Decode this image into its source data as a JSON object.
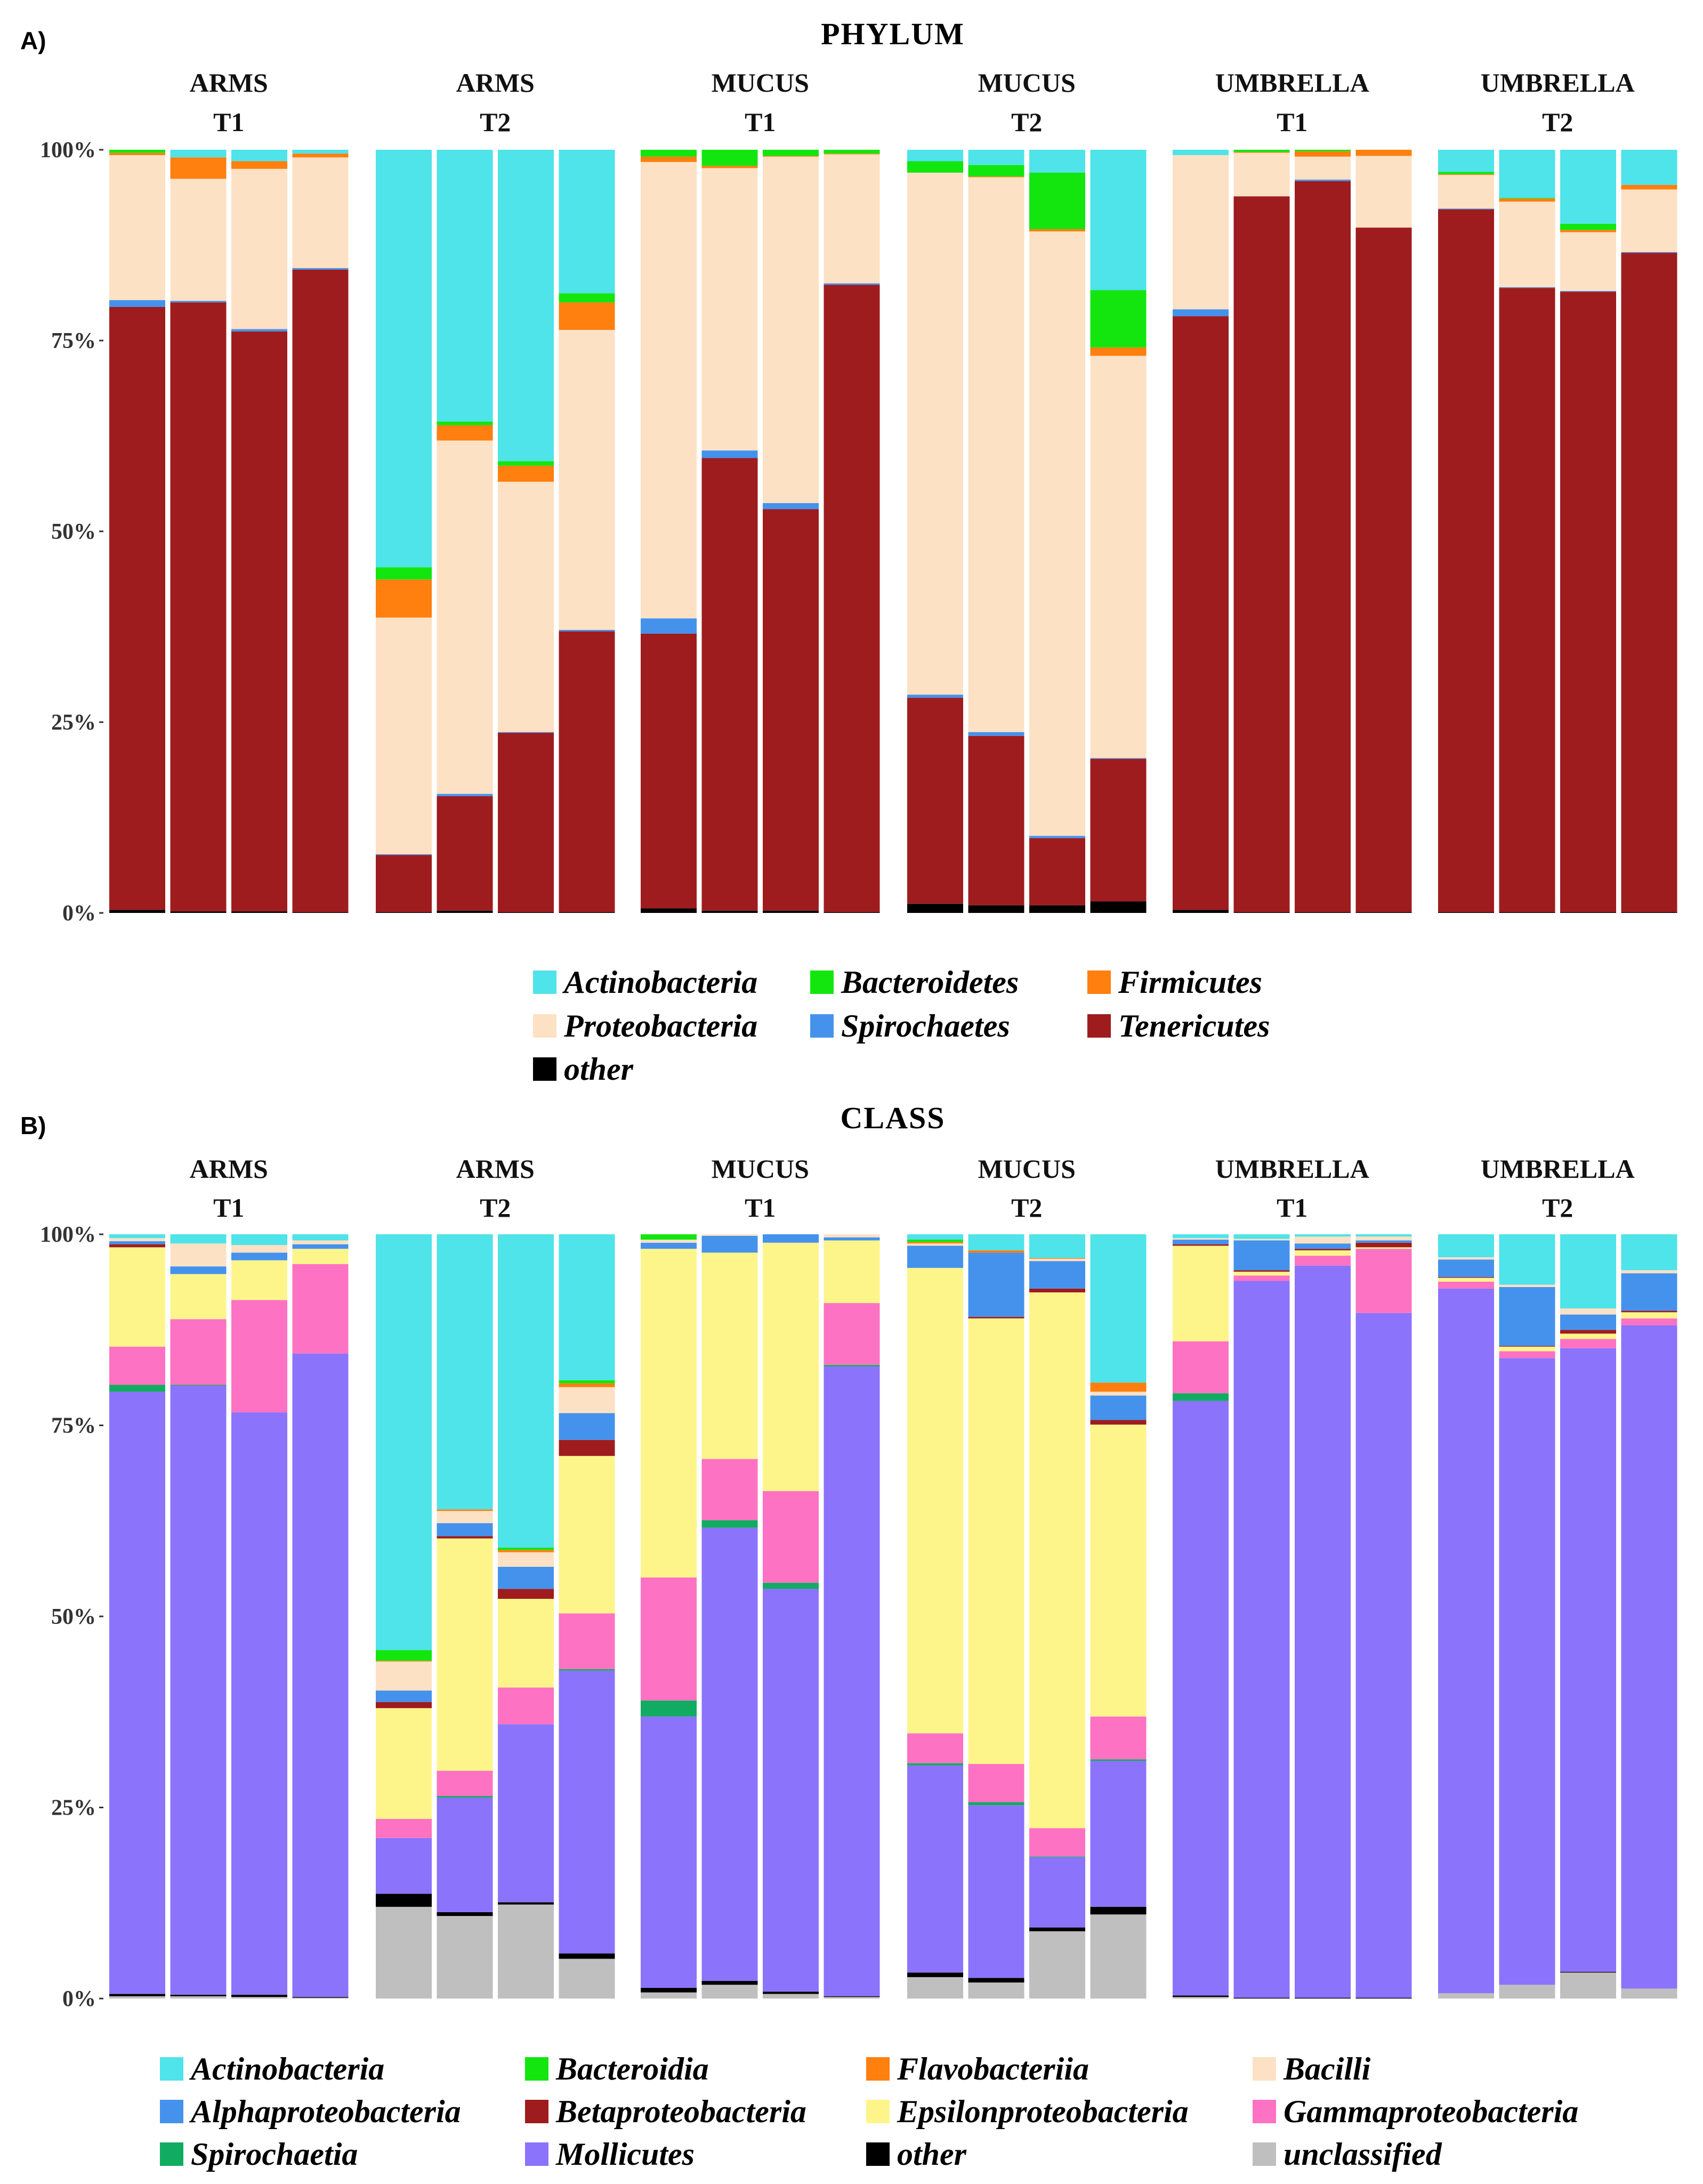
{
  "figure": {
    "facets": [
      {
        "line1": "ARMS",
        "line2": "T1"
      },
      {
        "line1": "ARMS",
        "line2": "T2"
      },
      {
        "line1": "MUCUS",
        "line2": "T1"
      },
      {
        "line1": "MUCUS",
        "line2": "T2"
      },
      {
        "line1": "UMBRELLA",
        "line2": "T1"
      },
      {
        "line1": "UMBRELLA",
        "line2": "T2"
      }
    ],
    "y_ticks": [
      "0%",
      "25%",
      "50%",
      "75%",
      "100%"
    ]
  },
  "chart_data": [
    {
      "panel": "A)",
      "type": "bar",
      "stacked": true,
      "title": "PHYLUM",
      "ylim": [
        0,
        100
      ],
      "bars_per_facet": 4,
      "stack_order": [
        "other",
        "Tenericutes",
        "Spirochaetes",
        "Proteobacteria",
        "Firmicutes",
        "Bacteroidetes",
        "Actinobacteria"
      ],
      "legend": {
        "entries": [
          "Actinobacteria",
          "Bacteroidetes",
          "Firmicutes",
          "Proteobacteria",
          "Spirochaetes",
          "Tenericutes",
          "other"
        ],
        "columns": 3
      },
      "colors": {
        "Actinobacteria": "#4fe3ea",
        "Bacteroidetes": "#13e60f",
        "Firmicutes": "#ff7f0f",
        "Proteobacteria": "#fde1c4",
        "Spirochaetes": "#4592ec",
        "Tenericutes": "#9e1c1e",
        "other": "#000000"
      },
      "facets": [
        {
          "facet": "ARMS T1",
          "bars": [
            {
              "other": 0.4,
              "Tenericutes": 79,
              "Spirochaetes": 0.9,
              "Proteobacteria": 19,
              "Firmicutes": 0.3,
              "Bacteroidetes": 0.4
            },
            {
              "other": 0.2,
              "Tenericutes": 79.8,
              "Spirochaetes": 0.2,
              "Proteobacteria": 16,
              "Firmicutes": 2.8,
              "Actinobacteria": 1.0
            },
            {
              "other": 0.2,
              "Tenericutes": 76,
              "Spirochaetes": 0.3,
              "Proteobacteria": 21,
              "Firmicutes": 1.0,
              "Actinobacteria": 1.5
            },
            {
              "other": 0.1,
              "Tenericutes": 84.2,
              "Spirochaetes": 0.2,
              "Proteobacteria": 14.5,
              "Firmicutes": 0.5,
              "Actinobacteria": 0.5
            }
          ]
        },
        {
          "facet": "ARMS T2",
          "bars": [
            {
              "other": 0.1,
              "Tenericutes": 7.5,
              "Spirochaetes": 0.1,
              "Proteobacteria": 31,
              "Firmicutes": 5,
              "Bacteroidetes": 1.6,
              "Actinobacteria": 54.7
            },
            {
              "other": 0.3,
              "Tenericutes": 15,
              "Spirochaetes": 0.3,
              "Proteobacteria": 46.3,
              "Firmicutes": 2.0,
              "Bacteroidetes": 0.5,
              "Actinobacteria": 35.6
            },
            {
              "other": 0.1,
              "Tenericutes": 23.5,
              "Spirochaetes": 0.1,
              "Proteobacteria": 32.8,
              "Firmicutes": 2.1,
              "Bacteroidetes": 0.6,
              "Actinobacteria": 40.8
            },
            {
              "other": 0.1,
              "Tenericutes": 36.8,
              "Spirochaetes": 0.2,
              "Proteobacteria": 39.3,
              "Firmicutes": 3.6,
              "Bacteroidetes": 1.2,
              "Actinobacteria": 18.8
            }
          ]
        },
        {
          "facet": "MUCUS T1",
          "bars": [
            {
              "other": 0.6,
              "Tenericutes": 36,
              "Spirochaetes": 2.0,
              "Proteobacteria": 59.8,
              "Firmicutes": 0.7,
              "Bacteroidetes": 0.9
            },
            {
              "other": 0.3,
              "Tenericutes": 59.3,
              "Spirochaetes": 1.0,
              "Proteobacteria": 37,
              "Firmicutes": 0.3,
              "Bacteroidetes": 2.1
            },
            {
              "other": 0.3,
              "Tenericutes": 52.6,
              "Spirochaetes": 0.8,
              "Proteobacteria": 45.4,
              "Firmicutes": 0.1,
              "Bacteroidetes": 0.8
            },
            {
              "other": 0.1,
              "Tenericutes": 82.2,
              "Spirochaetes": 0.2,
              "Proteobacteria": 16.9,
              "Firmicutes": 0.1,
              "Bacteroidetes": 0.5
            }
          ]
        },
        {
          "facet": "MUCUS T2",
          "bars": [
            {
              "other": 1.2,
              "Tenericutes": 27,
              "Spirochaetes": 0.4,
              "Proteobacteria": 68.4,
              "Bacteroidetes": 1.5,
              "Actinobacteria": 1.5
            },
            {
              "other": 1.0,
              "Tenericutes": 22.2,
              "Spirochaetes": 0.5,
              "Proteobacteria": 72.7,
              "Firmicutes": 0.1,
              "Bacteroidetes": 1.5,
              "Actinobacteria": 2.0
            },
            {
              "other": 1.0,
              "Tenericutes": 8.8,
              "Spirochaetes": 0.3,
              "Proteobacteria": 79.2,
              "Firmicutes": 0.3,
              "Bacteroidetes": 7.4,
              "Actinobacteria": 3.0
            },
            {
              "other": 1.5,
              "Tenericutes": 18.7,
              "Spirochaetes": 0.1,
              "Proteobacteria": 52.7,
              "Firmicutes": 1.1,
              "Bacteroidetes": 7.5,
              "Actinobacteria": 18.4
            }
          ]
        },
        {
          "facet": "UMBRELLA T1",
          "bars": [
            {
              "other": 0.4,
              "Tenericutes": 77.8,
              "Spirochaetes": 0.9,
              "Proteobacteria": 20.2,
              "Actinobacteria": 0.7
            },
            {
              "other": 0.1,
              "Tenericutes": 93.8,
              "Proteobacteria": 5.7,
              "Firmicutes": 0.1,
              "Bacteroidetes": 0.3
            },
            {
              "other": 0.1,
              "Tenericutes": 95.8,
              "Spirochaetes": 0.2,
              "Proteobacteria": 3.0,
              "Firmicutes": 0.7,
              "Bacteroidetes": 0.2
            },
            {
              "other": 0.1,
              "Tenericutes": 89.7,
              "Proteobacteria": 9.4,
              "Firmicutes": 0.8
            }
          ]
        },
        {
          "facet": "UMBRELLA T2",
          "bars": [
            {
              "other": 0.1,
              "Tenericutes": 92.1,
              "Spirochaetes": 0.1,
              "Proteobacteria": 4.4,
              "Firmicutes": 0.1,
              "Bacteroidetes": 0.3,
              "Actinobacteria": 2.9
            },
            {
              "other": 0.1,
              "Tenericutes": 81.8,
              "Spirochaetes": 0.1,
              "Proteobacteria": 11.2,
              "Firmicutes": 0.4,
              "Bacteroidetes": 0.1,
              "Actinobacteria": 6.3
            },
            {
              "other": 0.1,
              "Tenericutes": 81.3,
              "Spirochaetes": 0.1,
              "Proteobacteria": 7.7,
              "Firmicutes": 0.3,
              "Bacteroidetes": 0.8,
              "Actinobacteria": 9.7
            },
            {
              "other": 0.1,
              "Tenericutes": 86.4,
              "Spirochaetes": 0.1,
              "Proteobacteria": 8.2,
              "Firmicutes": 0.6,
              "Actinobacteria": 4.6
            }
          ]
        }
      ]
    },
    {
      "panel": "B)",
      "type": "bar",
      "stacked": true,
      "title": "CLASS",
      "ylim": [
        0,
        100
      ],
      "bars_per_facet": 4,
      "stack_order": [
        "unclassified",
        "other",
        "Mollicutes",
        "Spirochaetia",
        "Gammaproteobacteria",
        "Epsilonproteobacteria",
        "Betaproteobacteria",
        "Alphaproteobacteria",
        "Bacilli",
        "Flavobacteriia",
        "Bacteroidia",
        "Actinobacteria"
      ],
      "legend": {
        "entries": [
          "Actinobacteria",
          "Bacteroidia",
          "Flavobacteriia",
          "Bacilli",
          "Alphaproteobacteria",
          "Betaproteobacteria",
          "Epsilonproteobacteria",
          "Gammaproteobacteria",
          "Spirochaetia",
          "Mollicutes",
          "other",
          "unclassified"
        ],
        "columns": 4
      },
      "colors": {
        "Actinobacteria": "#4fe3ea",
        "Bacteroidia": "#13e60f",
        "Flavobacteriia": "#ff7f0f",
        "Bacilli": "#fde1c4",
        "Alphaproteobacteria": "#4592ec",
        "Betaproteobacteria": "#9e1c1e",
        "Epsilonproteobacteria": "#fdf58a",
        "Gammaproteobacteria": "#fd72c2",
        "Spirochaetia": "#12ab62",
        "Mollicutes": "#8b73fb",
        "other": "#000000",
        "unclassified": "#bfbfbf"
      },
      "facets": [
        {
          "facet": "ARMS T1",
          "bars": [
            {
              "unclassified": 0.3,
              "other": 0.3,
              "Mollicutes": 78.8,
              "Spirochaetia": 0.9,
              "Gammaproteobacteria": 5,
              "Epsilonproteobacteria": 13,
              "Betaproteobacteria": 0.4,
              "Alphaproteobacteria": 0.4,
              "Bacilli": 0.4,
              "Actinobacteria": 0.5
            },
            {
              "unclassified": 0.3,
              "other": 0.2,
              "Mollicutes": 79.7,
              "Spirochaetia": 0.1,
              "Gammaproteobacteria": 8.6,
              "Epsilonproteobacteria": 5.9,
              "Alphaproteobacteria": 1.0,
              "Bacilli": 3.0,
              "Actinobacteria": 1.2
            },
            {
              "unclassified": 0.2,
              "other": 0.3,
              "Mollicutes": 76.2,
              "Gammaproteobacteria": 14.7,
              "Epsilonproteobacteria": 5.2,
              "Alphaproteobacteria": 1.0,
              "Bacilli": 1.0,
              "Actinobacteria": 1.4
            },
            {
              "unclassified": 0.1,
              "other": 0.1,
              "Mollicutes": 84.2,
              "Gammaproteobacteria": 11.7,
              "Epsilonproteobacteria": 2.0,
              "Alphaproteobacteria": 0.6,
              "Bacilli": 0.5,
              "Actinobacteria": 0.8
            }
          ]
        },
        {
          "facet": "ARMS T2",
          "bars": [
            {
              "unclassified": 12,
              "other": 1.7,
              "Mollicutes": 7.3,
              "Gammaproteobacteria": 2.5,
              "Epsilonproteobacteria": 14.5,
              "Betaproteobacteria": 0.8,
              "Alphaproteobacteria": 1.5,
              "Bacilli": 3.8,
              "Flavobacteriia": 0.1,
              "Bacteroidia": 1.4,
              "Actinobacteria": 54.4
            },
            {
              "unclassified": 10.8,
              "other": 0.5,
              "Mollicutes": 15,
              "Spirochaetia": 0.2,
              "Gammaproteobacteria": 3.3,
              "Epsilonproteobacteria": 30.4,
              "Betaproteobacteria": 0.3,
              "Alphaproteobacteria": 1.7,
              "Bacilli": 1.6,
              "Flavobacteriia": 0.2,
              "Actinobacteria": 36
            },
            {
              "unclassified": 12.3,
              "other": 0.3,
              "Mollicutes": 23.3,
              "Gammaproteobacteria": 4.8,
              "Epsilonproteobacteria": 11.6,
              "Betaproteobacteria": 1.3,
              "Alphaproteobacteria": 2.9,
              "Bacilli": 1.9,
              "Flavobacteriia": 0.3,
              "Bacteroidia": 0.3,
              "Actinobacteria": 41
            },
            {
              "unclassified": 5.2,
              "other": 0.7,
              "Mollicutes": 37,
              "Spirochaetia": 0.2,
              "Gammaproteobacteria": 7.3,
              "Epsilonproteobacteria": 20.6,
              "Betaproteobacteria": 2.1,
              "Alphaproteobacteria": 3.5,
              "Bacilli": 3.4,
              "Flavobacteriia": 0.5,
              "Bacteroidia": 0.4,
              "Actinobacteria": 19.1
            }
          ]
        },
        {
          "facet": "MUCUS T1",
          "bars": [
            {
              "unclassified": 0.8,
              "other": 0.6,
              "Mollicutes": 35.5,
              "Spirochaetia": 2.1,
              "Gammaproteobacteria": 16.1,
              "Epsilonproteobacteria": 43,
              "Alphaproteobacteria": 0.8,
              "Bacilli": 0.4,
              "Bacteroidia": 0.7
            },
            {
              "unclassified": 1.8,
              "other": 0.5,
              "Mollicutes": 59.3,
              "Spirochaetia": 1.0,
              "Gammaproteobacteria": 8.0,
              "Epsilonproteobacteria": 27,
              "Alphaproteobacteria": 2.2,
              "Bacilli": 0.2
            },
            {
              "unclassified": 0.6,
              "other": 0.3,
              "Mollicutes": 52.7,
              "Spirochaetia": 0.8,
              "Gammaproteobacteria": 12.0,
              "Epsilonproteobacteria": 32.5,
              "Alphaproteobacteria": 1.1
            },
            {
              "unclassified": 0.2,
              "other": 0.1,
              "Mollicutes": 82.4,
              "Spirochaetia": 0.2,
              "Gammaproteobacteria": 8.1,
              "Epsilonproteobacteria": 8.2,
              "Alphaproteobacteria": 0.4,
              "Bacilli": 0.4
            }
          ]
        },
        {
          "facet": "MUCUS T2",
          "bars": [
            {
              "unclassified": 2.8,
              "other": 0.6,
              "Mollicutes": 27.1,
              "Spirochaetia": 0.3,
              "Gammaproteobacteria": 3.9,
              "Epsilonproteobacteria": 60.9,
              "Alphaproteobacteria": 2.9,
              "Bacilli": 0.3,
              "Flavobacteriia": 0.2,
              "Bacteroidia": 0.3,
              "Actinobacteria": 0.7
            },
            {
              "unclassified": 2.1,
              "other": 0.6,
              "Mollicutes": 22.6,
              "Spirochaetia": 0.4,
              "Gammaproteobacteria": 5.0,
              "Epsilonproteobacteria": 58.3,
              "Betaproteobacteria": 0.2,
              "Alphaproteobacteria": 8.4,
              "Flavobacteriia": 0.3,
              "Actinobacteria": 2.1
            },
            {
              "unclassified": 8.8,
              "other": 0.5,
              "Mollicutes": 9.2,
              "Spirochaetia": 0.1,
              "Gammaproteobacteria": 3.7,
              "Epsilonproteobacteria": 70.1,
              "Betaproteobacteria": 0.5,
              "Alphaproteobacteria": 3.6,
              "Bacilli": 0.3,
              "Flavobacteriia": 0.1,
              "Actinobacteria": 3.1
            },
            {
              "unclassified": 11,
              "other": 1.0,
              "Mollicutes": 19.1,
              "Spirochaetia": 0.2,
              "Gammaproteobacteria": 5.6,
              "Epsilonproteobacteria": 38.2,
              "Betaproteobacteria": 0.6,
              "Alphaproteobacteria": 3.2,
              "Bacilli": 0.5,
              "Flavobacteriia": 1.2,
              "Actinobacteria": 19.4
            }
          ]
        },
        {
          "facet": "UMBRELLA T1",
          "bars": [
            {
              "unclassified": 0.2,
              "other": 0.2,
              "Mollicutes": 77.8,
              "Spirochaetia": 1.0,
              "Gammaproteobacteria": 6.8,
              "Epsilonproteobacteria": 12.5,
              "Betaproteobacteria": 0.2,
              "Alphaproteobacteria": 0.6,
              "Bacilli": 0.2,
              "Actinobacteria": 0.5
            },
            {
              "other": 0.1,
              "Mollicutes": 93.8,
              "Gammaproteobacteria": 0.7,
              "Epsilonproteobacteria": 0.5,
              "Betaproteobacteria": 0.2,
              "Alphaproteobacteria": 3.9,
              "Bacilli": 0.2,
              "Actinobacteria": 0.6
            },
            {
              "other": 0.1,
              "Mollicutes": 95.8,
              "Gammaproteobacteria": 1.3,
              "Epsilonproteobacteria": 0.7,
              "Betaproteobacteria": 0.2,
              "Alphaproteobacteria": 0.7,
              "Bacilli": 0.9,
              "Actinobacteria": 0.3
            },
            {
              "other": 0.1,
              "Mollicutes": 89.6,
              "Gammaproteobacteria": 8.4,
              "Epsilonproteobacteria": 0.2,
              "Betaproteobacteria": 0.6,
              "Alphaproteobacteria": 0.3,
              "Bacilli": 0.5,
              "Actinobacteria": 0.3
            }
          ]
        },
        {
          "facet": "UMBRELLA T2",
          "bars": [
            {
              "unclassified": 0.7,
              "Mollicutes": 92.2,
              "Gammaproteobacteria": 0.9,
              "Epsilonproteobacteria": 0.5,
              "Betaproteobacteria": 0.1,
              "Alphaproteobacteria": 2.3,
              "Bacilli": 0.3,
              "Actinobacteria": 3.0
            },
            {
              "unclassified": 1.8,
              "Mollicutes": 82,
              "Gammaproteobacteria": 0.9,
              "Epsilonproteobacteria": 0.6,
              "Betaproteobacteria": 0.1,
              "Alphaproteobacteria": 7.7,
              "Bacilli": 0.3,
              "Actinobacteria": 6.6
            },
            {
              "unclassified": 3.4,
              "other": 0.1,
              "Mollicutes": 81.6,
              "Gammaproteobacteria": 1.2,
              "Epsilonproteobacteria": 0.7,
              "Betaproteobacteria": 0.5,
              "Alphaproteobacteria": 2.0,
              "Bacilli": 0.8,
              "Actinobacteria": 9.7
            },
            {
              "unclassified": 1.3,
              "Mollicutes": 86.8,
              "Gammaproteobacteria": 0.9,
              "Epsilonproteobacteria": 0.8,
              "Betaproteobacteria": 0.2,
              "Alphaproteobacteria": 4.9,
              "Bacilli": 0.4,
              "Actinobacteria": 4.7
            }
          ]
        }
      ]
    }
  ]
}
